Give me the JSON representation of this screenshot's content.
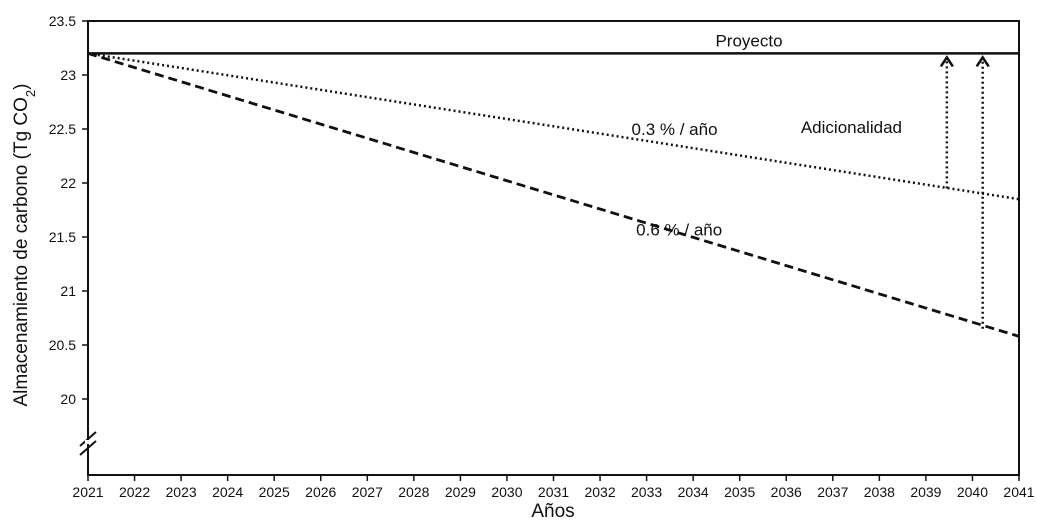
{
  "chart_data": {
    "type": "line",
    "title": "",
    "xlabel": "Años",
    "ylabel": "Almacenamiento de carbono (Tg CO",
    "ylabel_sub": "2",
    "ylabel_close": ")",
    "xlim": [
      2021,
      2041
    ],
    "ylim": [
      19.5,
      23.5
    ],
    "y_axis_break": true,
    "grid": false,
    "x_ticks": [
      2021,
      2022,
      2023,
      2024,
      2025,
      2026,
      2027,
      2028,
      2029,
      2030,
      2031,
      2032,
      2033,
      2034,
      2035,
      2036,
      2037,
      2038,
      2039,
      2040,
      2041
    ],
    "y_ticks": [
      20,
      20.5,
      21,
      21.5,
      22,
      22.5,
      23,
      23.5
    ],
    "series": [
      {
        "name": "Proyecto",
        "style": "solid",
        "color": "#111111",
        "x": [
          2021,
          2041
        ],
        "y": [
          23.2,
          23.2
        ]
      },
      {
        "name": "0.3 % / año",
        "style": "dotted",
        "color": "#111111",
        "x": [
          2021,
          2041
        ],
        "y": [
          23.2,
          21.85
        ]
      },
      {
        "name": "0.6 % / año",
        "style": "dashed",
        "color": "#111111",
        "x": [
          2021,
          2041
        ],
        "y": [
          23.2,
          20.58
        ]
      }
    ],
    "annotations": [
      {
        "text": "Proyecto",
        "x": 2035.2,
        "y": 23.32
      },
      {
        "text": "0.3 % / año",
        "x": 2033.6,
        "y": 22.5
      },
      {
        "text": "0.6 % / año",
        "x": 2033.7,
        "y": 21.57
      },
      {
        "text": "Adicionalidad",
        "x": 2037.4,
        "y": 22.52
      }
    ],
    "arrows": [
      {
        "label": "Adicionalidad 0.3 %",
        "x": 2039.45,
        "y_from": 21.95,
        "y_to": 23.2
      },
      {
        "label": "Adicionalidad 0.6 %",
        "x": 2040.22,
        "y_from": 20.65,
        "y_to": 23.2
      }
    ]
  }
}
